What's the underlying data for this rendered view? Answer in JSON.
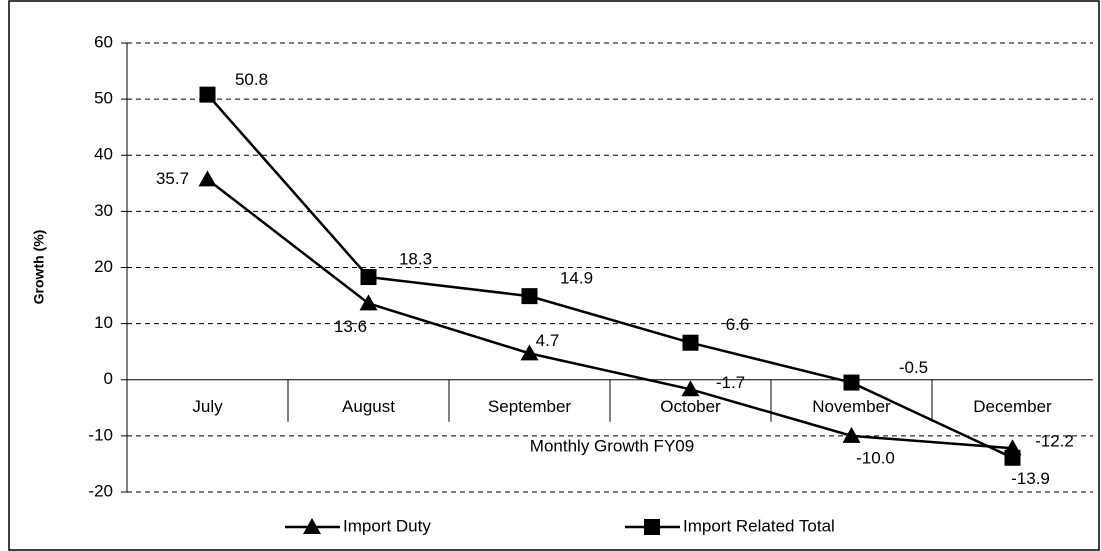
{
  "chart_data": {
    "type": "line",
    "x_label": "Monthly Growth FY09",
    "y_label": "Growth (%)",
    "categories": [
      "July",
      "August",
      "September",
      "October",
      "November",
      "December"
    ],
    "series": [
      {
        "name": "Import Duty",
        "color": "#000000",
        "marker": "triangle",
        "values": [
          35.7,
          13.6,
          4.7,
          -1.7,
          -10.0,
          -12.2
        ],
        "value_labels": [
          "35.7",
          "13.6",
          "4.7",
          "-1.7",
          "-10.0",
          "-12.2"
        ]
      },
      {
        "name": "Import Related Total",
        "color": "#000000",
        "marker": "square",
        "values": [
          50.8,
          18.3,
          14.9,
          6.6,
          -0.5,
          -13.9
        ],
        "value_labels": [
          "50.8",
          "18.3",
          "14.9",
          "6.6",
          "-0.5",
          "-13.9"
        ]
      }
    ],
    "ylim": [
      -20,
      60
    ],
    "yticks": [
      -20,
      -10,
      0,
      10,
      20,
      30,
      40,
      50,
      60
    ],
    "grid": true,
    "legend": "bottom"
  }
}
